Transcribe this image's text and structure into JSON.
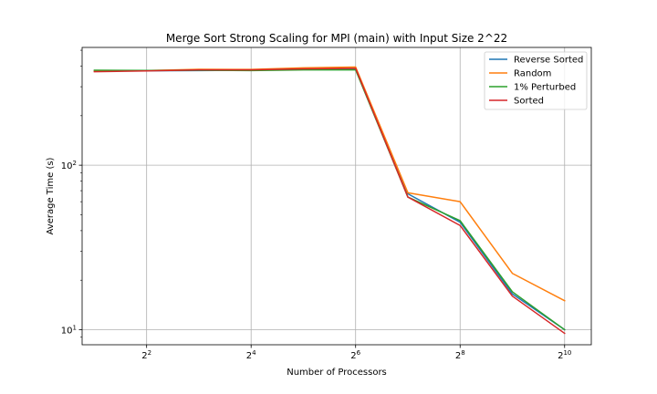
{
  "chart_data": {
    "type": "line",
    "title": "Merge Sort Strong Scaling for MPI (main) with Input Size 2^22",
    "xlabel": "Number of Processors",
    "ylabel": "Average Time (s)",
    "xscale": "log2",
    "yscale": "log10",
    "xlim": [
      1.7,
      1459
    ],
    "ylim": [
      8.1,
      520
    ],
    "x": [
      2,
      4,
      8,
      16,
      32,
      64,
      128,
      256,
      512,
      1024
    ],
    "xticks": [
      {
        "value": 4,
        "base": "2",
        "exp": "2"
      },
      {
        "value": 16,
        "base": "2",
        "exp": "4"
      },
      {
        "value": 64,
        "base": "2",
        "exp": "6"
      },
      {
        "value": 256,
        "base": "2",
        "exp": "8"
      },
      {
        "value": 1024,
        "base": "2",
        "exp": "10"
      }
    ],
    "yticks": [
      {
        "value": 10,
        "base": "10",
        "exp": "1"
      },
      {
        "value": 100,
        "base": "10",
        "exp": "2"
      }
    ],
    "grid": true,
    "legend_position": "top-right",
    "series": [
      {
        "name": "Reverse Sorted",
        "color": "#1f77b4",
        "values": [
          375,
          375,
          376,
          378,
          382,
          385,
          67,
          45,
          16.5,
          10.0
        ]
      },
      {
        "name": "Random",
        "color": "#ff7f0e",
        "values": [
          372,
          376,
          383,
          382,
          391,
          395,
          68,
          60,
          22.0,
          15.0
        ]
      },
      {
        "name": "1% Perturbed",
        "color": "#2ca02c",
        "values": [
          378,
          377,
          378,
          376,
          380,
          380,
          64,
          46,
          17.0,
          10.0
        ]
      },
      {
        "name": "Sorted",
        "color": "#d62728",
        "values": [
          370,
          374,
          380,
          380,
          385,
          388,
          64,
          43,
          16.0,
          9.5
        ]
      }
    ]
  }
}
